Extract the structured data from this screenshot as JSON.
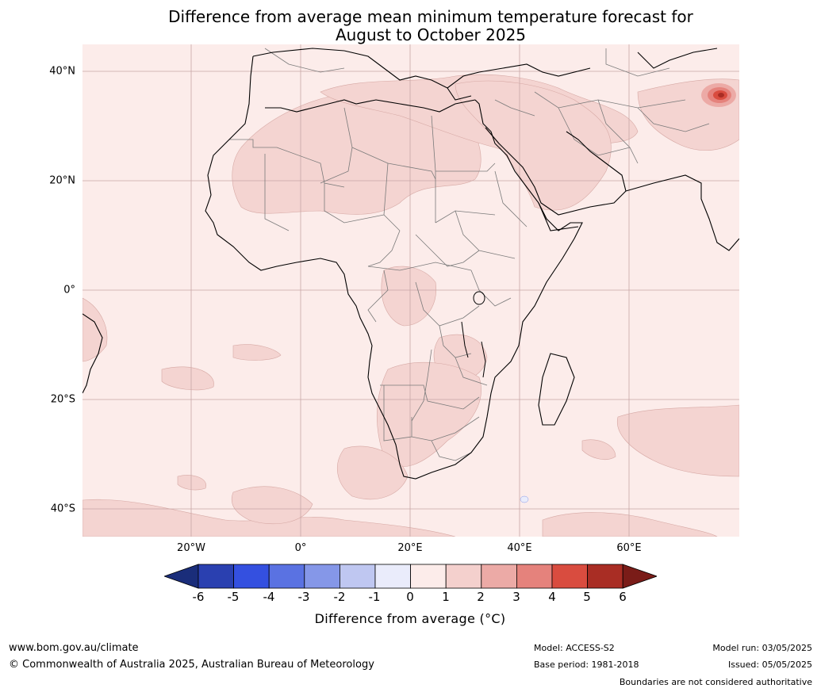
{
  "title_line1": "Difference from average mean minimum temperature forecast for",
  "title_line2": "August to October 2025",
  "map": {
    "region": "Africa and Middle East",
    "lon_range": [
      -40,
      80
    ],
    "lat_range": [
      -45,
      45
    ],
    "lat_ticks": [
      {
        "value": 40,
        "label": "40°N"
      },
      {
        "value": 20,
        "label": "20°N"
      },
      {
        "value": 0,
        "label": "0°"
      },
      {
        "value": -20,
        "label": "20°S"
      },
      {
        "value": -40,
        "label": "40°S"
      }
    ],
    "lon_ticks": [
      {
        "value": -20,
        "label": "20°W"
      },
      {
        "value": 0,
        "label": "0°"
      },
      {
        "value": 20,
        "label": "20°E"
      },
      {
        "value": 40,
        "label": "40°E"
      },
      {
        "value": 60,
        "label": "60°E"
      }
    ],
    "background_anomaly_class": "0 to 1",
    "hotspot_location": {
      "lon": 77,
      "lat": 35.5
    }
  },
  "colorbar": {
    "ticks": [
      "-6",
      "-5",
      "-4",
      "-3",
      "-2",
      "-1",
      "0",
      "1",
      "2",
      "3",
      "4",
      "5",
      "6"
    ],
    "colors": [
      "#1a2d7a",
      "#2a40b0",
      "#3450e0",
      "#5a72e2",
      "#8597e8",
      "#bfc7f1",
      "#eaecfb",
      "#fcecea",
      "#f4d0cd",
      "#ecaaa6",
      "#e5827c",
      "#d94c3f",
      "#a92d24",
      "#7a1c18"
    ],
    "label": "Difference from average (°C)"
  },
  "footer": {
    "website": "www.bom.gov.au/climate",
    "copyright": "© Commonwealth of Australia 2025, Australian Bureau of Meteorology",
    "model": "Model: ACCESS-S2",
    "base_period": "Base period: 1981-2018",
    "model_run": "Model run: 03/05/2025",
    "issued": "Issued: 05/05/2025",
    "boundaries_note": "Boundaries are not considered authoritative"
  }
}
